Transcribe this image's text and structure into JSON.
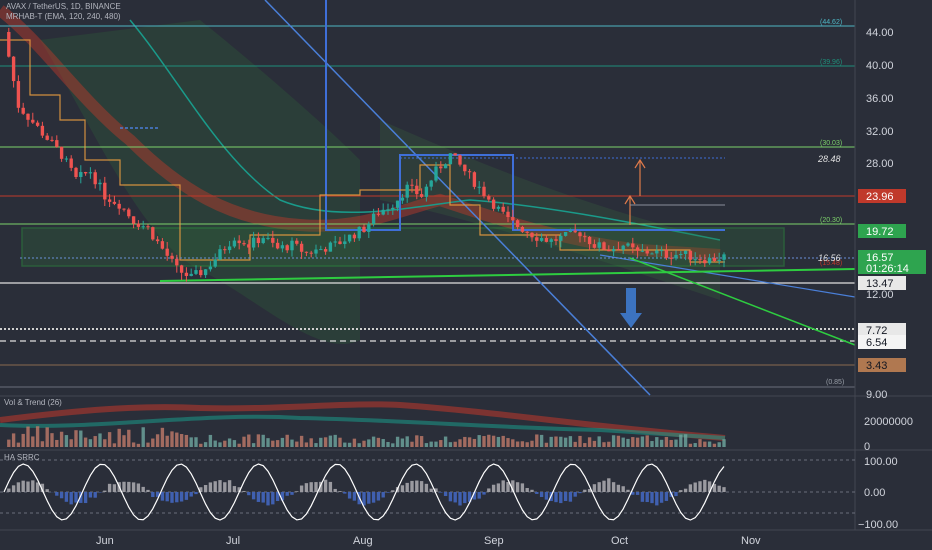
{
  "header": {
    "symbol_line": "AVAX / TetherUS, 1D, BINANCE",
    "indicator_line": "MRHAB-T (EMA, 120, 240, 480)"
  },
  "panes": {
    "volume_title": "Vol & Trend (26)",
    "oscillator_title": "HA SRRC"
  },
  "colors": {
    "background": "#2a2e39",
    "up": "#26a69a",
    "down": "#ef5350",
    "green_line": "#2ecc40",
    "blue_line": "#3f6fd8",
    "orange_line": "#f0a040",
    "red_band": "#c0392b"
  },
  "price_labels": {
    "current_price": "16.57",
    "countdown": "01:26:14",
    "level_upper_green": "19.72",
    "level_red": "23.96",
    "level_white": "13.47",
    "level_7_72": "7.72",
    "level_6_54": "6.54",
    "level_3_43": "3.43",
    "level_28_48": "28.48",
    "level_16_56": "16.56"
  },
  "fib_labels": {
    "f1": "(44.62)",
    "f2": "(39.96)",
    "f3": "(30.03)",
    "f4": "(20.30)",
    "f5": "(15.48)",
    "f6": "(0.85)"
  },
  "chart_data": {
    "type": "candlestick",
    "title": "AVAX / TetherUS, 1D, BINANCE",
    "x_ticks": [
      "Jun",
      "Jul",
      "Aug",
      "Sep",
      "Oct",
      "Nov"
    ],
    "price_axis": {
      "ticks": [
        "44.00",
        "40.00",
        "36.00",
        "32.00",
        "28.00",
        "12.00",
        "9.00"
      ],
      "ylim": [
        3,
        48
      ]
    },
    "volume_axis": {
      "ticks": [
        "20000000",
        "0"
      ]
    },
    "oscillator_axis": {
      "ticks": [
        "100.00",
        "0.00",
        "−100.00"
      ]
    },
    "price_path": [
      [
        0,
        44
      ],
      [
        3,
        35
      ],
      [
        6,
        33
      ],
      [
        9,
        31
      ],
      [
        12,
        29
      ],
      [
        15,
        26
      ],
      [
        18,
        27
      ],
      [
        21,
        24
      ],
      [
        24,
        23
      ],
      [
        27,
        21
      ],
      [
        30,
        20
      ],
      [
        33,
        17.5
      ],
      [
        36,
        15
      ],
      [
        39,
        14
      ],
      [
        42,
        15
      ],
      [
        45,
        17
      ],
      [
        48,
        19
      ],
      [
        51,
        18
      ],
      [
        54,
        19
      ],
      [
        57,
        17.5
      ],
      [
        60,
        18
      ],
      [
        63,
        17
      ],
      [
        66,
        17.5
      ],
      [
        69,
        18
      ],
      [
        72,
        19
      ],
      [
        75,
        20
      ],
      [
        78,
        22
      ],
      [
        81,
        23
      ],
      [
        84,
        25
      ],
      [
        87,
        24
      ],
      [
        90,
        27
      ],
      [
        93,
        29
      ],
      [
        96,
        27
      ],
      [
        99,
        25
      ],
      [
        102,
        23
      ],
      [
        105,
        21
      ],
      [
        108,
        20
      ],
      [
        111,
        19
      ],
      [
        114,
        18.5
      ],
      [
        117,
        19
      ],
      [
        120,
        19.5
      ],
      [
        123,
        18
      ],
      [
        126,
        17.5
      ],
      [
        129,
        18
      ],
      [
        132,
        17
      ],
      [
        135,
        17.2
      ],
      [
        138,
        16.8
      ],
      [
        141,
        16.9
      ],
      [
        144,
        16.5
      ],
      [
        147,
        16.2
      ],
      [
        150,
        16.57
      ]
    ]
  }
}
